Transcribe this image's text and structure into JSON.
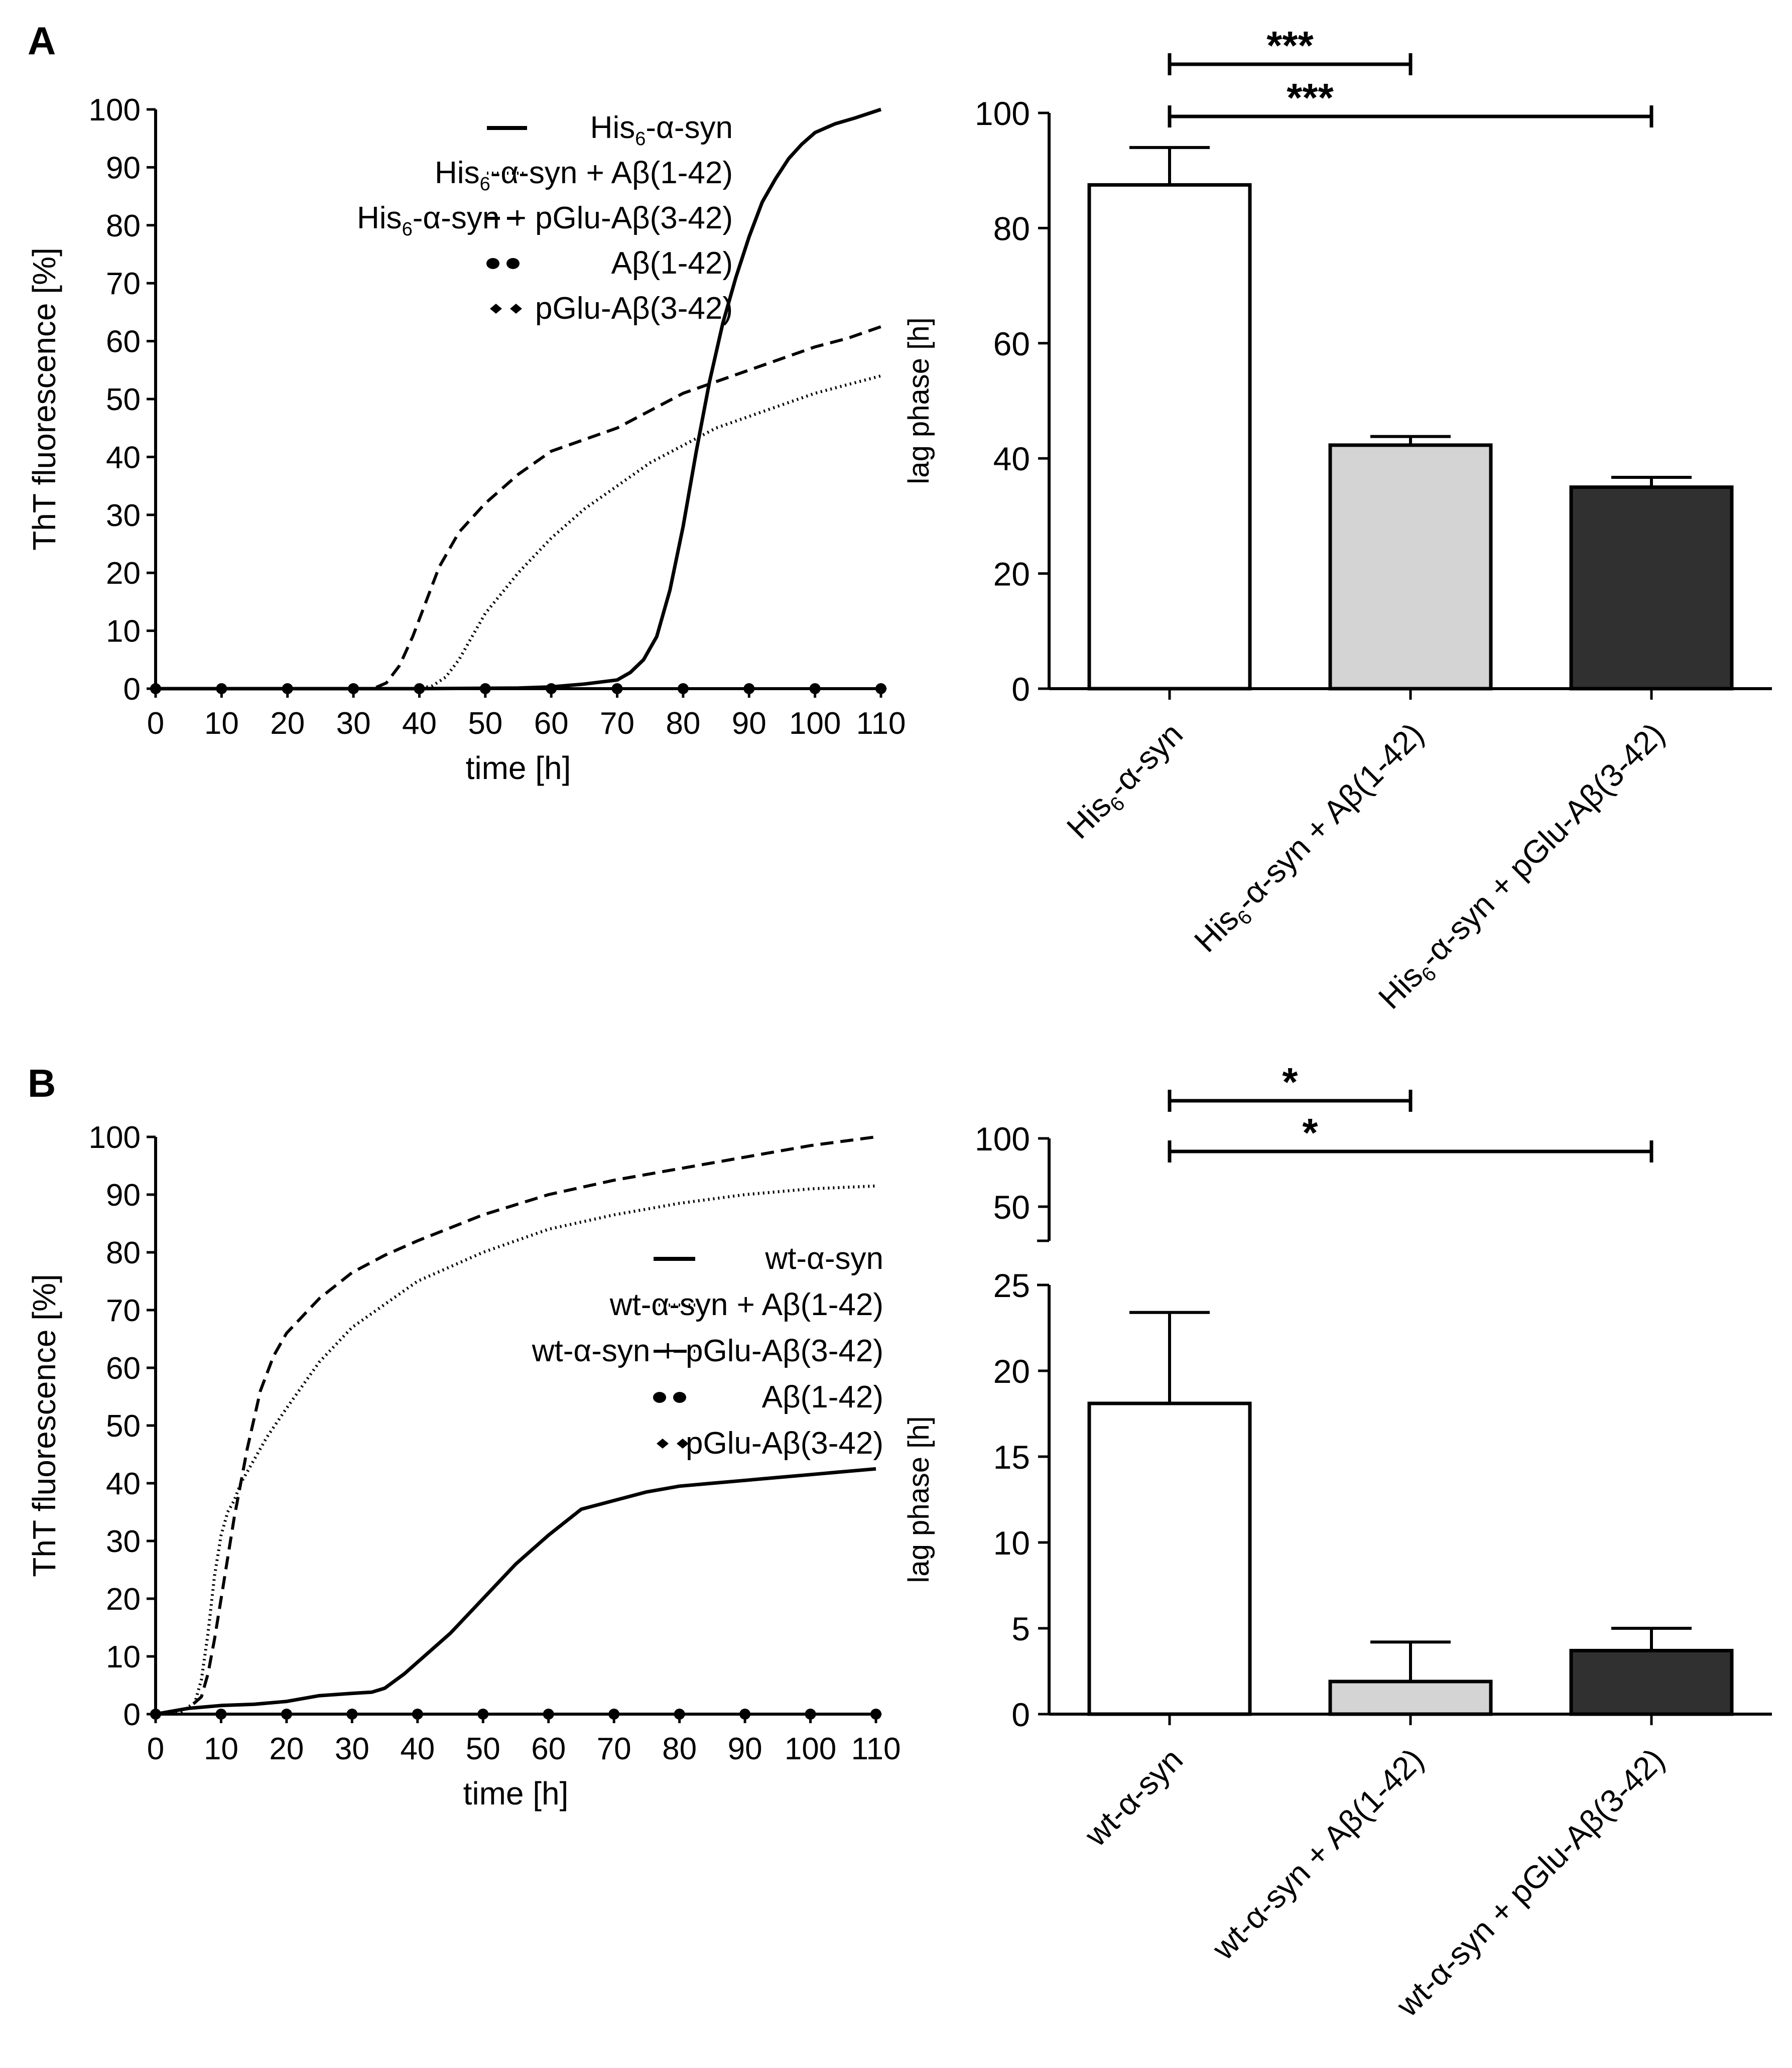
{
  "colors": {
    "ink": "#000000",
    "bar_white": "#ffffff",
    "bar_light": "#d4d4d4",
    "bar_dark": "#303030"
  },
  "chart_data": [
    {
      "panel": "A",
      "type": "line",
      "xlabel": "time [h]",
      "ylabel": "ThT fluorescence [%]",
      "xlim": [
        0,
        110
      ],
      "ylim": [
        0,
        100
      ],
      "xticks": [
        "0",
        "10",
        "20",
        "30",
        "40",
        "50",
        "60",
        "70",
        "80",
        "90",
        "100",
        "110"
      ],
      "yticks": [
        "0",
        "10",
        "20",
        "30",
        "40",
        "50",
        "60",
        "70",
        "80",
        "90",
        "100"
      ],
      "legend_position": "top-right",
      "series": [
        {
          "name": "His6-α-syn",
          "label": [
            "His",
            "6",
            "-α-syn"
          ],
          "style": "solid",
          "x": [
            0,
            40,
            55,
            60,
            65,
            70,
            72,
            74,
            76,
            78,
            80,
            82,
            84,
            86,
            88,
            90,
            92,
            94,
            96,
            98,
            100,
            103,
            106,
            110
          ],
          "y": [
            0,
            0,
            0.1,
            0.3,
            0.8,
            1.5,
            2.8,
            5,
            9,
            17,
            28,
            41,
            53,
            63,
            71,
            78,
            84,
            88,
            91.5,
            94,
            96,
            97.5,
            98.5,
            100
          ]
        },
        {
          "name": "His6-α-syn + Aβ(1-42)",
          "label": [
            "His",
            "6",
            "-α-syn + Aβ(1-42)"
          ],
          "style": "dotted",
          "x": [
            0,
            40,
            42,
            44,
            46,
            48,
            50,
            55,
            60,
            65,
            70,
            75,
            80,
            85,
            90,
            95,
            100,
            105,
            110
          ],
          "y": [
            0,
            0,
            0.5,
            2,
            5,
            9,
            13,
            20,
            26,
            31,
            35,
            39,
            42,
            45,
            47,
            49,
            51,
            52.5,
            54
          ]
        },
        {
          "name": "His6-α-syn + pGlu-Aβ(3-42)",
          "label": [
            "His",
            "6",
            "-α-syn + pGlu-Aβ(3-42)"
          ],
          "style": "dashed",
          "x": [
            0,
            33,
            35,
            37,
            39,
            41,
            43,
            46,
            50,
            55,
            60,
            65,
            70,
            75,
            80,
            85,
            90,
            95,
            100,
            105,
            110
          ],
          "y": [
            0,
            0,
            1,
            4,
            9,
            15,
            21,
            27,
            32,
            37,
            41,
            43,
            45,
            48,
            51,
            53,
            55,
            57,
            59,
            60.5,
            62.5
          ]
        },
        {
          "name": "Aβ(1-42)",
          "label": [
            "",
            "",
            "Aβ(1-42)"
          ],
          "style": "circle-markers",
          "x": [
            0,
            10,
            20,
            30,
            40,
            50,
            60,
            70,
            80,
            90,
            100,
            110
          ],
          "y": [
            0,
            0,
            0,
            0,
            0,
            0,
            0,
            0,
            0,
            0,
            0,
            0
          ]
        },
        {
          "name": "pGlu-Aβ(3-42)",
          "label": [
            "",
            "",
            "pGlu-Aβ(3-42)"
          ],
          "style": "diamond-markers",
          "x": [
            0,
            10,
            20,
            30,
            40,
            50,
            60,
            70,
            80,
            90,
            100,
            110
          ],
          "y": [
            0,
            0,
            0,
            0,
            0,
            0,
            0,
            0,
            0,
            0,
            0,
            0
          ]
        }
      ]
    },
    {
      "panel": "A",
      "type": "bar",
      "ylabel": "lag phase [h]",
      "ylim": [
        0,
        100
      ],
      "yticks": [
        "0",
        "20",
        "40",
        "60",
        "80",
        "100"
      ],
      "categories": [
        "His6-α-syn",
        "His6-α-syn + Aβ(1-42)",
        "His6-α-syn + pGlu-Aβ(3-42)"
      ],
      "category_labels": [
        [
          "His",
          "6",
          "-α-syn"
        ],
        [
          "His",
          "6",
          "-α-syn + Aβ(1-42)"
        ],
        [
          "His",
          "6",
          "-α-syn + pGlu-Aβ(3-42)"
        ]
      ],
      "values": [
        87.5,
        42.3,
        35.0
      ],
      "errors": [
        6.5,
        1.5,
        1.7
      ],
      "significance": [
        {
          "from": 0,
          "to": 1,
          "label": "***"
        },
        {
          "from": 0,
          "to": 2,
          "label": "***"
        }
      ]
    },
    {
      "panel": "B",
      "type": "line",
      "xlabel": "time [h]",
      "ylabel": "ThT fluorescence [%]",
      "xlim": [
        0,
        110
      ],
      "ylim": [
        0,
        100
      ],
      "xticks": [
        "0",
        "10",
        "20",
        "30",
        "40",
        "50",
        "60",
        "70",
        "80",
        "90",
        "100",
        "110"
      ],
      "yticks": [
        "0",
        "10",
        "20",
        "30",
        "40",
        "50",
        "60",
        "70",
        "80",
        "90",
        "100"
      ],
      "legend_position": "right",
      "series": [
        {
          "name": "wt-α-syn",
          "label": [
            "wt-α-syn",
            "",
            ""
          ],
          "style": "solid",
          "x": [
            0,
            5,
            10,
            15,
            20,
            25,
            30,
            33,
            35,
            38,
            40,
            45,
            50,
            55,
            60,
            65,
            70,
            75,
            80,
            85,
            90,
            95,
            100,
            105,
            110
          ],
          "y": [
            0,
            1,
            1.5,
            1.7,
            2.2,
            3.2,
            3.6,
            3.8,
            4.5,
            7,
            9,
            14,
            20,
            26,
            31,
            35.5,
            37,
            38.5,
            39.5,
            40,
            40.5,
            41,
            41.5,
            42,
            42.5
          ]
        },
        {
          "name": "wt-α-syn + Aβ(1-42)",
          "label": [
            "wt-α-syn + Aβ(1-42)",
            "",
            ""
          ],
          "style": "dotted",
          "x": [
            0,
            4,
            6,
            7,
            8,
            9,
            10,
            11,
            12,
            13,
            15,
            17,
            20,
            25,
            30,
            35,
            40,
            50,
            60,
            70,
            80,
            90,
            100,
            110
          ],
          "y": [
            0,
            0.5,
            2,
            6,
            14,
            24,
            31,
            35,
            37,
            40,
            44,
            48,
            53,
            61,
            67,
            71,
            75,
            80,
            84,
            86.5,
            88.5,
            90,
            91,
            91.5
          ]
        },
        {
          "name": "wt-α-syn + pGlu-Aβ(3-42)",
          "label": [
            "wt-α-syn + pGlu-Aβ(3-42)",
            "",
            ""
          ],
          "style": "dashed",
          "x": [
            0,
            5,
            7,
            8,
            9,
            10,
            11,
            12,
            13,
            14,
            15,
            16,
            18,
            20,
            25,
            30,
            35,
            40,
            50,
            60,
            70,
            80,
            90,
            100,
            110
          ],
          "y": [
            0,
            1,
            3,
            7,
            13,
            20,
            27,
            34,
            40,
            46,
            51,
            56,
            62,
            66,
            72,
            76.5,
            79.5,
            82,
            86.5,
            90,
            92.5,
            94.5,
            96.5,
            98.5,
            100
          ]
        },
        {
          "name": "Aβ(1-42)",
          "label": [
            "Aβ(1-42)",
            "",
            ""
          ],
          "style": "circle-markers",
          "x": [
            0,
            10,
            20,
            30,
            40,
            50,
            60,
            70,
            80,
            90,
            100,
            110
          ],
          "y": [
            0,
            0,
            0,
            0,
            0,
            0,
            0,
            0,
            0,
            0,
            0,
            0
          ]
        },
        {
          "name": "pGlu-Aβ(3-42)",
          "label": [
            "pGlu-Aβ(3-42)",
            "",
            ""
          ],
          "style": "diamond-markers",
          "x": [
            0,
            10,
            20,
            30,
            40,
            50,
            60,
            70,
            80,
            90,
            100,
            110
          ],
          "y": [
            0,
            0,
            0,
            0,
            0,
            0,
            0,
            0,
            0,
            0,
            0,
            0
          ]
        }
      ]
    },
    {
      "panel": "B",
      "type": "bar",
      "ylabel": "lag phase [h]",
      "ylim": [
        0,
        25
      ],
      "broken_axis": true,
      "yticks": [
        "0",
        "5",
        "10",
        "15",
        "20",
        "25"
      ],
      "yticks_upper": [
        "50",
        "100"
      ],
      "categories": [
        "wt-α-syn",
        "wt-α-syn + Aβ(1-42)",
        "wt-α-syn + pGlu-Aβ(3-42)"
      ],
      "category_labels": [
        [
          "wt-α-syn",
          "",
          ""
        ],
        [
          "wt-α-syn + Aβ(1-42)",
          "",
          ""
        ],
        [
          "wt-α-syn + pGlu-Aβ(3-42)",
          "",
          ""
        ]
      ],
      "values": [
        18.1,
        1.9,
        3.7
      ],
      "errors": [
        5.3,
        2.3,
        1.3
      ],
      "significance": [
        {
          "from": 0,
          "to": 1,
          "label": "*"
        },
        {
          "from": 0,
          "to": 2,
          "label": "*"
        }
      ]
    }
  ],
  "panels": {
    "a": "A",
    "b": "B"
  }
}
